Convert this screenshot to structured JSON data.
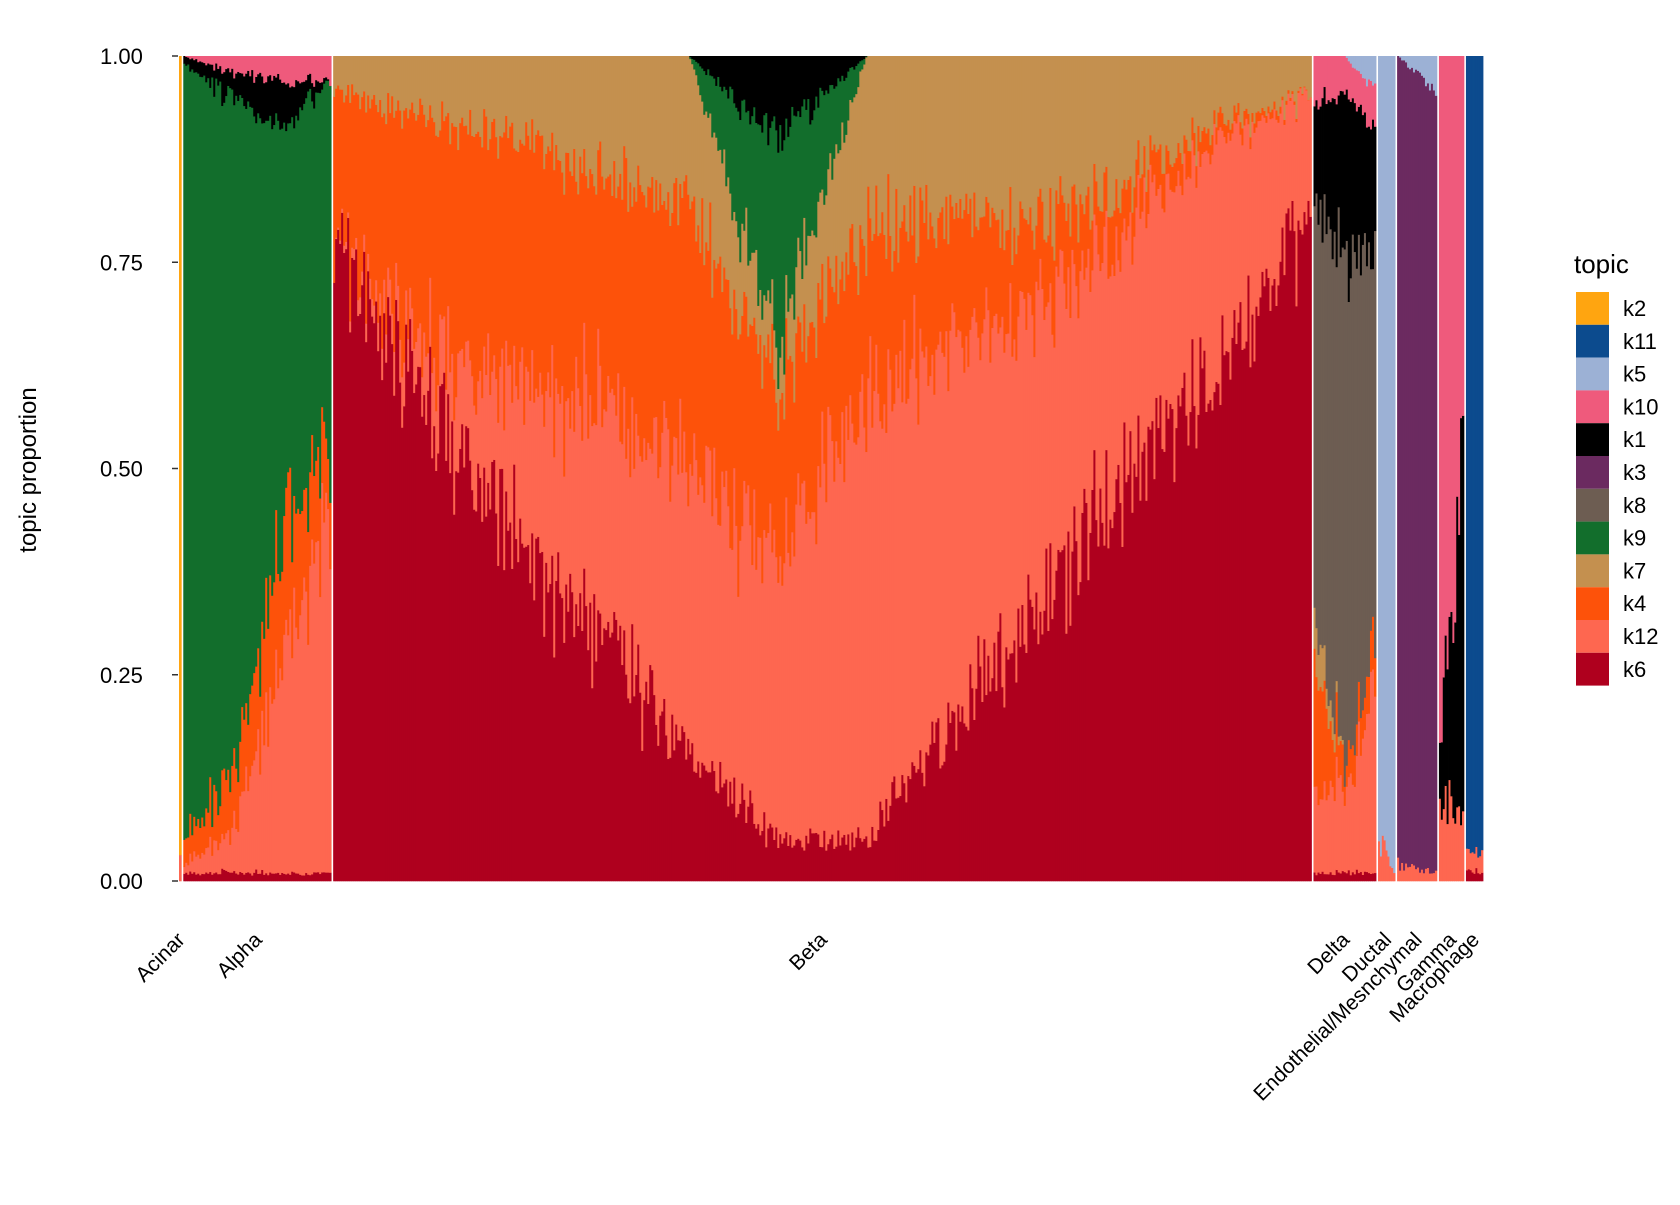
{
  "chart_data": {
    "type": "area",
    "subtype": "stacked-structure-plot",
    "ylabel": "topic proportion",
    "xlabel": "",
    "ylim": [
      0,
      1
    ],
    "yticks": [
      "0.00",
      "0.25",
      "0.50",
      "0.75",
      "1.00"
    ],
    "grid": false,
    "legend": {
      "title": "topic",
      "placement": "right",
      "entries": [
        {
          "name": "k2",
          "color": "#FFA510"
        },
        {
          "name": "k11",
          "color": "#0C4B8E"
        },
        {
          "name": "k5",
          "color": "#9CB1D5"
        },
        {
          "name": "k10",
          "color": "#EF5A7C"
        },
        {
          "name": "k1",
          "color": "#000000"
        },
        {
          "name": "k3",
          "color": "#6B2A60"
        },
        {
          "name": "k8",
          "color": "#6D5D52"
        },
        {
          "name": "k9",
          "color": "#126E2C"
        },
        {
          "name": "k7",
          "color": "#C4904F"
        },
        {
          "name": "k4",
          "color": "#FD520A"
        },
        {
          "name": "k12",
          "color": "#FE6750"
        },
        {
          "name": "k6",
          "color": "#AF001E"
        }
      ]
    },
    "categories": [
      "Acinar",
      "Alpha",
      "Beta",
      "Delta",
      "Ductal",
      "Endothelial/Mesnchymal",
      "Gamma",
      "Macrophage"
    ],
    "groups": [
      {
        "name": "Acinar",
        "cells": 2,
        "profile": [
          {
            "k2": 0.95,
            "k12": 0.05
          }
        ]
      },
      {
        "name": "Alpha",
        "cells": 130,
        "profile": [
          {
            "k6": 0.01,
            "k12": 0.01,
            "k4": 0.03,
            "k9": 0.94,
            "k1": 0.01
          },
          {
            "k6": 0.01,
            "k12": 0.05,
            "k4": 0.07,
            "k9": 0.82,
            "k1": 0.03,
            "k10": 0.02
          },
          {
            "k6": 0.01,
            "k12": 0.25,
            "k4": 0.15,
            "k9": 0.5,
            "k1": 0.06,
            "k10": 0.03
          },
          {
            "k6": 0.01,
            "k12": 0.45,
            "k4": 0.09,
            "k9": 0.42,
            "k10": 0.03
          }
        ]
      },
      {
        "name": "Beta",
        "cells": 860,
        "profile": [
          {
            "k6": 0.78,
            "k12": 0.0,
            "k4": 0.18,
            "k7": 0.04
          },
          {
            "k6": 0.6,
            "k12": 0.06,
            "k4": 0.27,
            "k7": 0.07
          },
          {
            "k6": 0.42,
            "k12": 0.18,
            "k4": 0.3,
            "k7": 0.1
          },
          {
            "k6": 0.3,
            "k12": 0.28,
            "k4": 0.28,
            "k7": 0.14
          },
          {
            "k6": 0.15,
            "k12": 0.35,
            "k4": 0.32,
            "k7": 0.18
          },
          {
            "k6": 0.05,
            "k12": 0.35,
            "k4": 0.2,
            "k9": 0.25,
            "k1": 0.1,
            "k7": 0.05
          },
          {
            "k6": 0.05,
            "k12": 0.55,
            "k4": 0.2,
            "k7": 0.2
          },
          {
            "k6": 0.2,
            "k12": 0.45,
            "k4": 0.15,
            "k7": 0.2
          },
          {
            "k6": 0.35,
            "k12": 0.35,
            "k4": 0.1,
            "k7": 0.2
          },
          {
            "k6": 0.5,
            "k12": 0.3,
            "k4": 0.05,
            "k7": 0.15
          },
          {
            "k6": 0.62,
            "k12": 0.28,
            "k4": 0.02,
            "k7": 0.08
          },
          {
            "k6": 0.8,
            "k12": 0.15,
            "k7": 0.05
          }
        ]
      },
      {
        "name": "Delta",
        "cells": 55,
        "profile": [
          {
            "k6": 0.01,
            "k12": 0.1,
            "k4": 0.15,
            "k7": 0.06,
            "k8": 0.5,
            "k1": 0.12,
            "k10": 0.06
          },
          {
            "k6": 0.01,
            "k12": 0.1,
            "k4": 0.03,
            "k8": 0.62,
            "k1": 0.2,
            "k10": 0.04
          },
          {
            "k6": 0.01,
            "k12": 0.2,
            "k4": 0.05,
            "k8": 0.5,
            "k1": 0.15,
            "k10": 0.05,
            "k5": 0.04
          }
        ]
      },
      {
        "name": "Ductal",
        "cells": 15,
        "profile": [
          {
            "k12": 0.05,
            "k5": 0.95
          },
          {
            "k12": 0.01,
            "k5": 0.99
          }
        ]
      },
      {
        "name": "Endothelial/Mesnchymal",
        "cells": 35,
        "profile": [
          {
            "k12": 0.02,
            "k3": 0.98
          },
          {
            "k12": 0.01,
            "k3": 0.95,
            "k5": 0.04
          }
        ]
      },
      {
        "name": "Gamma",
        "cells": 22,
        "profile": [
          {
            "k12": 0.1,
            "k1": 0.05,
            "k10": 0.85
          },
          {
            "k12": 0.08,
            "k1": 0.45,
            "k10": 0.47
          }
        ]
      },
      {
        "name": "Macrophage",
        "cells": 15,
        "profile": [
          {
            "k6": 0.01,
            "k12": 0.02,
            "k11": 0.97
          }
        ]
      }
    ]
  }
}
